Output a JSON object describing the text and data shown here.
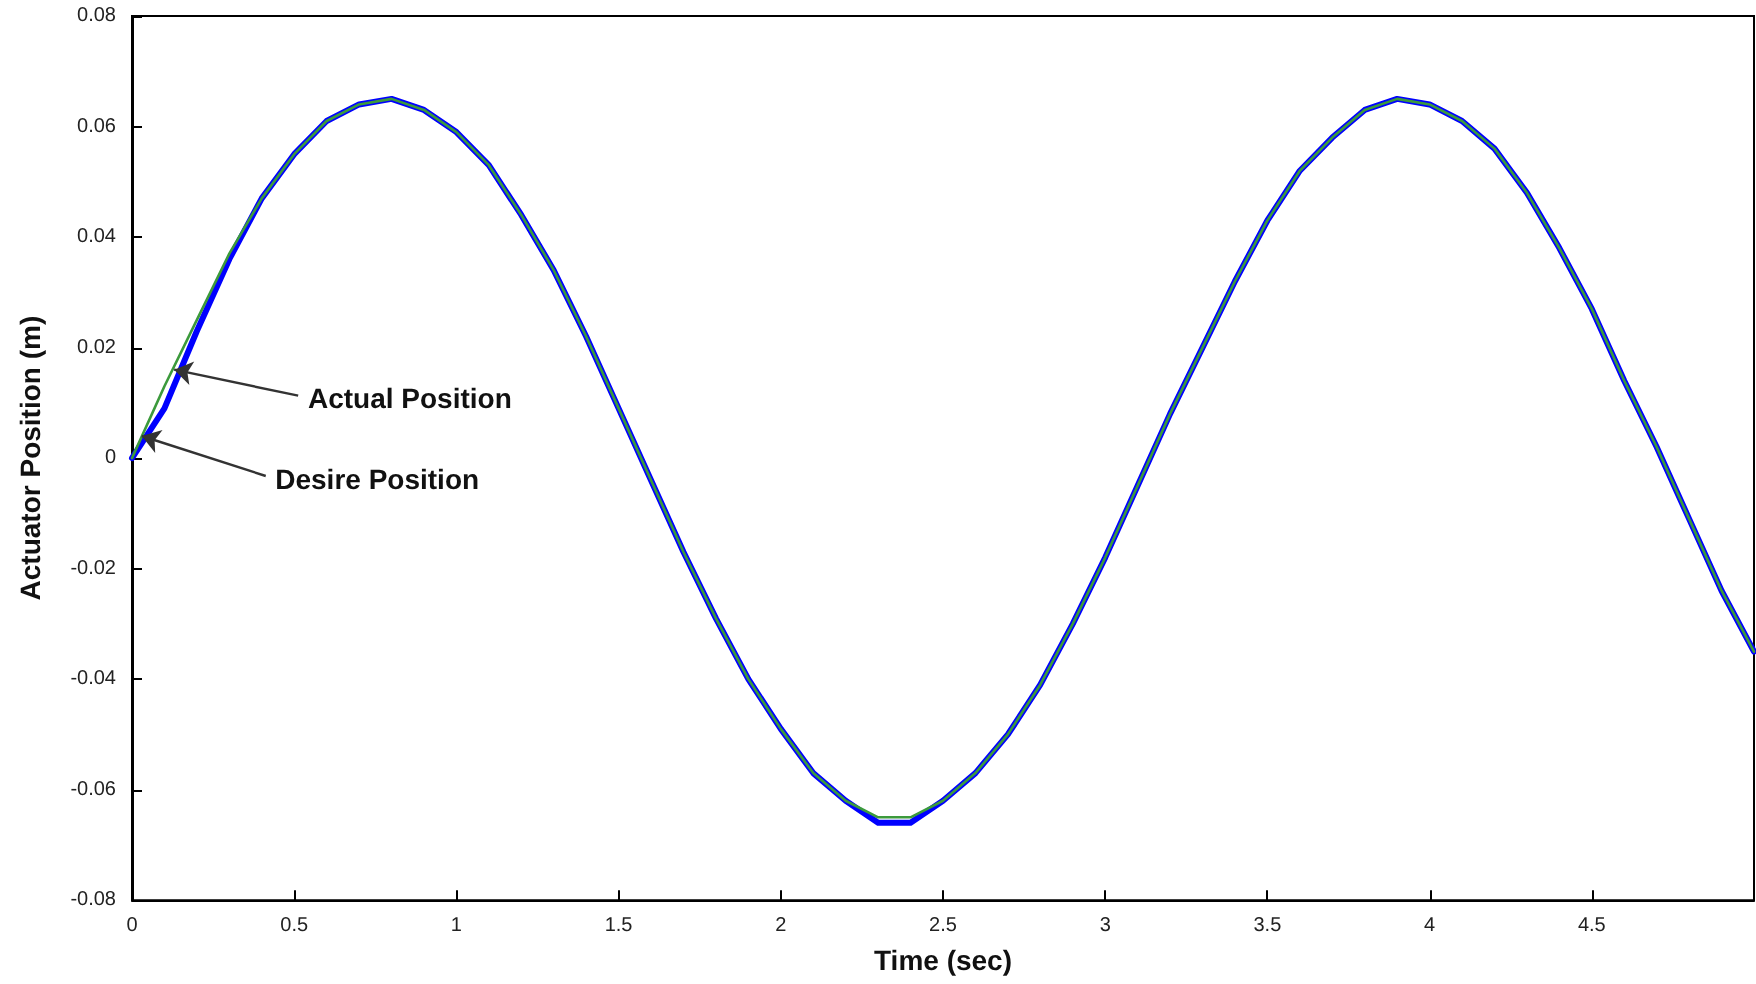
{
  "chart_data": {
    "type": "line",
    "xlabel": "Time (sec)",
    "ylabel": "Actuator Position (m)",
    "x": [
      0,
      0.1,
      0.2,
      0.3,
      0.4,
      0.5,
      0.6,
      0.7,
      0.8,
      0.9,
      1,
      1.1,
      1.2,
      1.3,
      1.4,
      1.5,
      1.6,
      1.7,
      1.8,
      1.9,
      2,
      2.1,
      2.2,
      2.3,
      2.4,
      2.5,
      2.6,
      2.7,
      2.8,
      2.9,
      3,
      3.1,
      3.2,
      3.3,
      3.4,
      3.5,
      3.6,
      3.7,
      3.8,
      3.9,
      4,
      4.1,
      4.2,
      4.3,
      4.4,
      4.5,
      4.6,
      4.7,
      4.8,
      4.9,
      5
    ],
    "series": [
      {
        "color": "#0000ff",
        "values": [
          0,
          0.009,
          0.023,
          0.036,
          0.047,
          0.055,
          0.061,
          0.064,
          0.065,
          0.063,
          0.059,
          0.053,
          0.044,
          0.034,
          0.022,
          0.009,
          -0.004,
          -0.017,
          -0.029,
          -0.04,
          -0.049,
          -0.057,
          -0.062,
          -0.066,
          -0.066,
          -0.062,
          -0.057,
          -0.05,
          -0.041,
          -0.03,
          -0.018,
          -0.005,
          0.008,
          0.02,
          0.032,
          0.043,
          0.052,
          0.058,
          0.063,
          0.065,
          0.064,
          0.061,
          0.056,
          0.048,
          0.038,
          0.027,
          0.014,
          0.002,
          -0.011,
          -0.024,
          -0.035
        ]
      },
      {
        "color": "#3c9a3c",
        "values": [
          0,
          0.013,
          0.025,
          0.037,
          0.047,
          0.055,
          0.061,
          0.064,
          0.065,
          0.063,
          0.059,
          0.053,
          0.044,
          0.034,
          0.022,
          0.009,
          -0.004,
          -0.017,
          -0.029,
          -0.04,
          -0.049,
          -0.057,
          -0.062,
          -0.065,
          -0.065,
          -0.062,
          -0.057,
          -0.05,
          -0.041,
          -0.03,
          -0.018,
          -0.005,
          0.008,
          0.02,
          0.032,
          0.043,
          0.052,
          0.058,
          0.063,
          0.065,
          0.064,
          0.061,
          0.056,
          0.048,
          0.038,
          0.027,
          0.014,
          0.002,
          -0.011,
          -0.024,
          -0.035
        ]
      }
    ],
    "xlim": [
      0,
      5
    ],
    "xticks": [
      0,
      0.5,
      1,
      1.5,
      2,
      2.5,
      3,
      3.5,
      4,
      4.5
    ],
    "ylim": [
      -0.08,
      0.08
    ],
    "yticks": [
      -0.08,
      -0.06,
      -0.04,
      -0.02,
      0,
      0.02,
      0.04,
      0.06,
      0.08
    ],
    "grid": false,
    "marker": "none",
    "line_style": "solid",
    "annotations": [
      {
        "text": "Actual Position",
        "x": 0.13,
        "y": 0.016
      },
      {
        "text": "Desire Position",
        "x": 0.03,
        "y": 0.004
      }
    ]
  }
}
